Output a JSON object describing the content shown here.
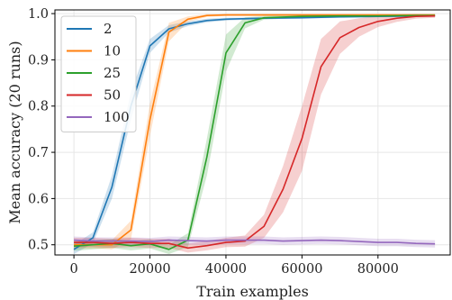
{
  "chart_data": {
    "type": "line",
    "title": "",
    "xlabel": "Train examples",
    "ylabel": "Mean accuracy (20 runs)",
    "xlim": [
      -5000,
      99000
    ],
    "ylim": [
      0.478,
      1.008
    ],
    "xticks": [
      0,
      20000,
      40000,
      60000,
      80000
    ],
    "yticks": [
      0.5,
      0.6,
      0.7,
      0.8,
      0.9,
      1.0
    ],
    "grid": true,
    "legend_position": "top-left",
    "series": [
      {
        "name": "2",
        "color": "#1f77b4",
        "x": [
          0,
          5000,
          10000,
          15000,
          20000,
          25000,
          30000,
          35000,
          40000,
          50000,
          60000,
          70000,
          80000,
          90000,
          95000
        ],
        "y": [
          0.49,
          0.515,
          0.625,
          0.8,
          0.93,
          0.967,
          0.978,
          0.985,
          0.988,
          0.99,
          0.991,
          0.993,
          0.994,
          0.995,
          0.995
        ],
        "band": [
          0.01,
          0.012,
          0.025,
          0.03,
          0.015,
          0.008,
          0.005,
          0.004,
          0.003,
          0.002,
          0.002,
          0.002,
          0.002,
          0.002,
          0.002
        ]
      },
      {
        "name": "10",
        "color": "#ff7f0e",
        "x": [
          0,
          5000,
          10000,
          15000,
          20000,
          25000,
          30000,
          35000,
          40000,
          50000,
          60000,
          70000,
          80000,
          90000,
          95000
        ],
        "y": [
          0.5,
          0.5,
          0.5,
          0.532,
          0.77,
          0.96,
          0.988,
          0.996,
          0.997,
          0.997,
          0.997,
          0.997,
          0.997,
          0.997,
          0.997
        ],
        "band": [
          0.008,
          0.008,
          0.01,
          0.02,
          0.035,
          0.02,
          0.006,
          0.003,
          0.002,
          0.002,
          0.002,
          0.002,
          0.002,
          0.002,
          0.002
        ]
      },
      {
        "name": "25",
        "color": "#2ca02c",
        "x": [
          0,
          5000,
          10000,
          15000,
          20000,
          25000,
          30000,
          35000,
          40000,
          45000,
          50000,
          60000,
          70000,
          80000,
          90000,
          95000
        ],
        "y": [
          0.497,
          0.5,
          0.503,
          0.498,
          0.502,
          0.49,
          0.51,
          0.69,
          0.915,
          0.98,
          0.991,
          0.994,
          0.995,
          0.995,
          0.996,
          0.996
        ],
        "band": [
          0.01,
          0.01,
          0.01,
          0.01,
          0.01,
          0.01,
          0.015,
          0.04,
          0.04,
          0.012,
          0.004,
          0.003,
          0.002,
          0.002,
          0.002,
          0.002
        ]
      },
      {
        "name": "50",
        "color": "#d62728",
        "x": [
          0,
          5000,
          10000,
          15000,
          20000,
          25000,
          30000,
          35000,
          40000,
          45000,
          50000,
          55000,
          60000,
          65000,
          70000,
          75000,
          80000,
          85000,
          90000,
          95000
        ],
        "y": [
          0.505,
          0.505,
          0.503,
          0.505,
          0.503,
          0.503,
          0.493,
          0.498,
          0.505,
          0.508,
          0.54,
          0.62,
          0.73,
          0.885,
          0.948,
          0.97,
          0.983,
          0.99,
          0.994,
          0.995
        ],
        "band": [
          0.01,
          0.01,
          0.01,
          0.01,
          0.01,
          0.01,
          0.01,
          0.01,
          0.01,
          0.012,
          0.025,
          0.05,
          0.07,
          0.06,
          0.035,
          0.02,
          0.012,
          0.008,
          0.005,
          0.004
        ]
      },
      {
        "name": "100",
        "color": "#9467bd",
        "x": [
          0,
          5000,
          10000,
          15000,
          20000,
          25000,
          30000,
          35000,
          40000,
          45000,
          50000,
          55000,
          60000,
          65000,
          70000,
          75000,
          80000,
          85000,
          90000,
          95000
        ],
        "y": [
          0.51,
          0.508,
          0.508,
          0.508,
          0.507,
          0.51,
          0.509,
          0.508,
          0.51,
          0.51,
          0.51,
          0.508,
          0.509,
          0.51,
          0.509,
          0.507,
          0.505,
          0.505,
          0.503,
          0.502
        ],
        "band": [
          0.008,
          0.008,
          0.008,
          0.008,
          0.008,
          0.008,
          0.008,
          0.008,
          0.008,
          0.008,
          0.008,
          0.008,
          0.008,
          0.008,
          0.008,
          0.008,
          0.008,
          0.008,
          0.008,
          0.008
        ]
      }
    ]
  }
}
